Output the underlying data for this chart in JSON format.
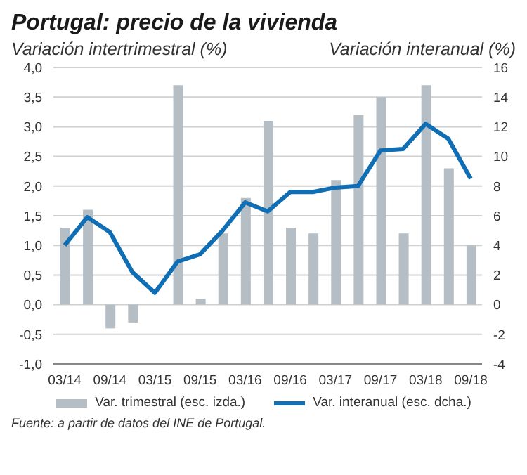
{
  "chart_data": {
    "type": "bar",
    "title": "Portugal: precio de la vivienda",
    "ylabel": "Variación intertrimestral (%)",
    "y2label": "Variación interanual (%)",
    "categories": [
      "03/14",
      null,
      "09/14",
      null,
      "03/15",
      null,
      "09/15",
      null,
      "03/16",
      null,
      "09/16",
      null,
      "03/17",
      null,
      "09/17",
      null,
      "03/18",
      null,
      "09/18"
    ],
    "series": [
      {
        "name": "Var. trimestral (esc. izda.)",
        "color": "#b4bec4",
        "values": [
          1.3,
          1.6,
          -0.4,
          -0.3,
          0,
          3.7,
          0.1,
          1.2,
          1.8,
          3.1,
          1.3,
          1.2,
          2.1,
          3.2,
          3.5,
          1.2,
          3.7,
          2.3,
          1.0
        ]
      },
      {
        "name": "Var. interanual (esc. dcha.)",
        "type": "line",
        "axis": "y2",
        "color": "#0f6eb4",
        "values": [
          4.0,
          5.9,
          4.9,
          2.2,
          0.8,
          2.9,
          3.4,
          5.0,
          6.9,
          6.3,
          7.6,
          7.6,
          7.9,
          8.0,
          10.4,
          10.5,
          12.2,
          11.2,
          8.5
        ]
      }
    ],
    "ylim": [
      -1,
      4
    ],
    "yticks": [
      {
        "value": -1,
        "label": "-1,0"
      },
      {
        "value": -0.5,
        "label": "-0,5"
      },
      {
        "value": 0,
        "label": "0,0"
      },
      {
        "value": 0.5,
        "label": "0,5"
      },
      {
        "value": 1,
        "label": "1,0"
      },
      {
        "value": 1.5,
        "label": "1,5"
      },
      {
        "value": 2,
        "label": "2,0"
      },
      {
        "value": 2.5,
        "label": "2,5"
      },
      {
        "value": 3,
        "label": "3,0"
      },
      {
        "value": 3.5,
        "label": "3,5"
      },
      {
        "value": 4,
        "label": "4,0"
      }
    ],
    "y2lim": [
      -4,
      16
    ],
    "y2ticks": [
      -4,
      -2,
      0,
      2,
      4,
      6,
      8,
      10,
      12,
      14,
      16
    ],
    "grid": "y",
    "legend": "bottom",
    "marker": "none",
    "line_style": "solid",
    "annotations": [
      "Fuente: a partir de datos del INE de Portugal."
    ]
  }
}
